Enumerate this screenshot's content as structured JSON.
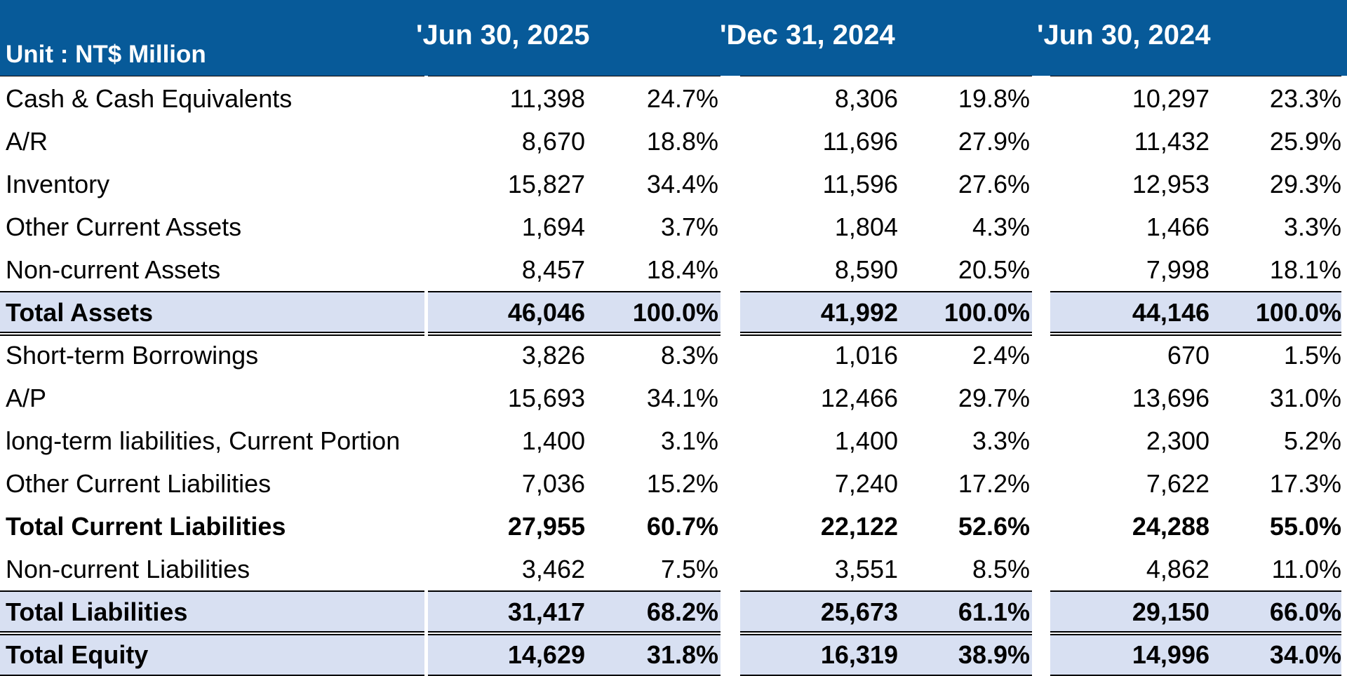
{
  "header": {
    "unit": "Unit : NT$ Million",
    "periods": [
      "'Jun 30, 2025",
      "'Dec 31, 2024",
      "'Jun 30, 2024"
    ]
  },
  "rows": [
    {
      "label": "Cash & Cash Equivalents",
      "values": [
        "11,398",
        "24.7%",
        "8,306",
        "19.8%",
        "10,297",
        "23.3%"
      ]
    },
    {
      "label": "A/R",
      "values": [
        "8,670",
        "18.8%",
        "11,696",
        "27.9%",
        "11,432",
        "25.9%"
      ]
    },
    {
      "label": "Inventory",
      "values": [
        "15,827",
        "34.4%",
        "11,596",
        "27.6%",
        "12,953",
        "29.3%"
      ]
    },
    {
      "label": "Other Current Assets",
      "values": [
        "1,694",
        "3.7%",
        "1,804",
        "4.3%",
        "1,466",
        "3.3%"
      ]
    },
    {
      "label": "Non-current Assets",
      "values": [
        "8,457",
        "18.4%",
        "8,590",
        "20.5%",
        "7,998",
        "18.1%"
      ]
    },
    {
      "label": "Total Assets",
      "values": [
        "46,046",
        "100.0%",
        "41,992",
        "100.0%",
        "44,146",
        "100.0%"
      ]
    },
    {
      "label": "Short-term Borrowings",
      "values": [
        "3,826",
        "8.3%",
        "1,016",
        "2.4%",
        "670",
        "1.5%"
      ]
    },
    {
      "label": "A/P",
      "values": [
        "15,693",
        "34.1%",
        "12,466",
        "29.7%",
        "13,696",
        "31.0%"
      ]
    },
    {
      "label": "long-term liabilities, Current Portion",
      "values": [
        "1,400",
        "3.1%",
        "1,400",
        "3.3%",
        "2,300",
        "5.2%"
      ]
    },
    {
      "label": "Other Current Liabilities",
      "values": [
        "7,036",
        "15.2%",
        "7,240",
        "17.2%",
        "7,622",
        "17.3%"
      ]
    },
    {
      "label": "Total Current Liabilities",
      "values": [
        "27,955",
        "60.7%",
        "22,122",
        "52.6%",
        "24,288",
        "55.0%"
      ]
    },
    {
      "label": "Non-current Liabilities",
      "values": [
        "3,462",
        "7.5%",
        "3,551",
        "8.5%",
        "4,862",
        "11.0%"
      ]
    },
    {
      "label": "Total Liabilities",
      "values": [
        "31,417",
        "68.2%",
        "25,673",
        "61.1%",
        "29,150",
        "66.0%"
      ]
    },
    {
      "label": "Total Equity",
      "values": [
        "14,629",
        "31.8%",
        "16,319",
        "38.9%",
        "14,996",
        "34.0%"
      ]
    }
  ],
  "colors": {
    "header_bg": "#075a99",
    "total_band": "#d8e0f2"
  }
}
